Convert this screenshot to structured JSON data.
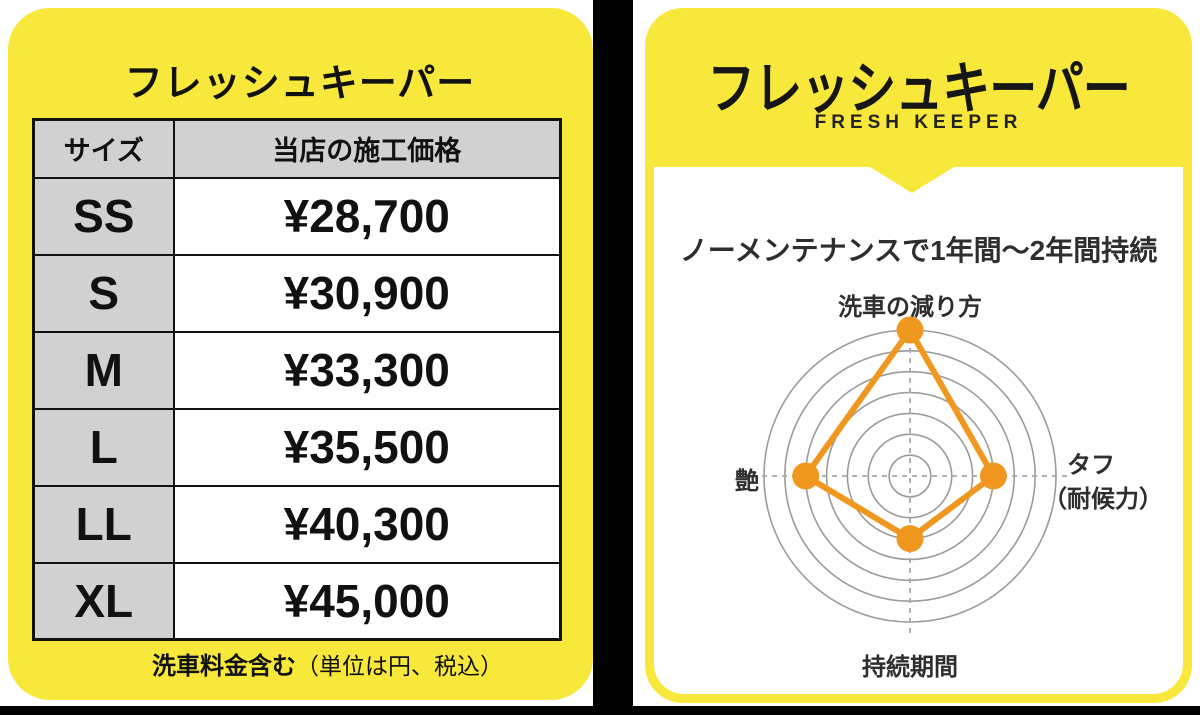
{
  "left_panel": {
    "title": "フレッシュキーパー",
    "table": {
      "headers": [
        "サイズ",
        "当店の施工価格"
      ],
      "rows": [
        [
          "SS",
          "¥28,700"
        ],
        [
          "S",
          "¥30,900"
        ],
        [
          "M",
          "¥33,300"
        ],
        [
          "L",
          "¥35,500"
        ],
        [
          "LL",
          "¥40,300"
        ],
        [
          "XL",
          "¥45,000"
        ]
      ]
    },
    "footnote": {
      "bold": "洗車料金含む",
      "normal": "（単位は円、税込）"
    }
  },
  "right_panel": {
    "logo_title": "フレッシュキーパー",
    "logo_subtitle": "FRESH KEEPER"
  },
  "chart_data": {
    "type": "radar",
    "title": "ノーメンテナンスで1年間～2年間持続",
    "categories": [
      "洗車の減り方",
      "タフ（耐候力）",
      "持続期間",
      "艶"
    ],
    "values": [
      7,
      4,
      3,
      5
    ],
    "value_order": "top, right, bottom, left",
    "max": 7,
    "rings": 7,
    "grid": "concentric-circles",
    "axis_style": "dashed-cross",
    "right_label_lines": [
      "タフ",
      "（耐候力）"
    ],
    "series_color": "#F0971F",
    "grid_color": "#9B9B9B",
    "axis_color": "#A8A8A8"
  },
  "colors": {
    "panel_yellow": "#F8E83C",
    "table_gray": "#D1D1D1",
    "divider_black": "#000000",
    "accent_orange": "#F0971F"
  }
}
